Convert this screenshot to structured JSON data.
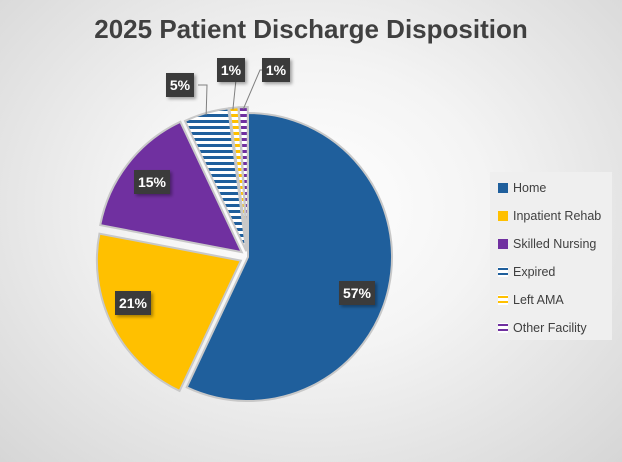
{
  "chart_data": {
    "type": "pie",
    "title": "2025 Patient Discharge Disposition",
    "categories": [
      "Home",
      "Inpatient Rehab",
      "Skilled Nursing",
      "Expired",
      "Left AMA",
      "Other Facility"
    ],
    "values": [
      57,
      21,
      15,
      5,
      1,
      1
    ],
    "data_labels": [
      "57%",
      "21%",
      "15%",
      "5%",
      "1%",
      "1%"
    ],
    "colors": [
      "#1f5f9c",
      "#ffc000",
      "#7030a0",
      "#1f5f9c",
      "#ffc000",
      "#7030a0"
    ],
    "patterns": [
      "solid",
      "solid",
      "solid",
      "horizontal-stripes",
      "horizontal-stripes",
      "horizontal-stripes"
    ],
    "legend_position": "right"
  }
}
